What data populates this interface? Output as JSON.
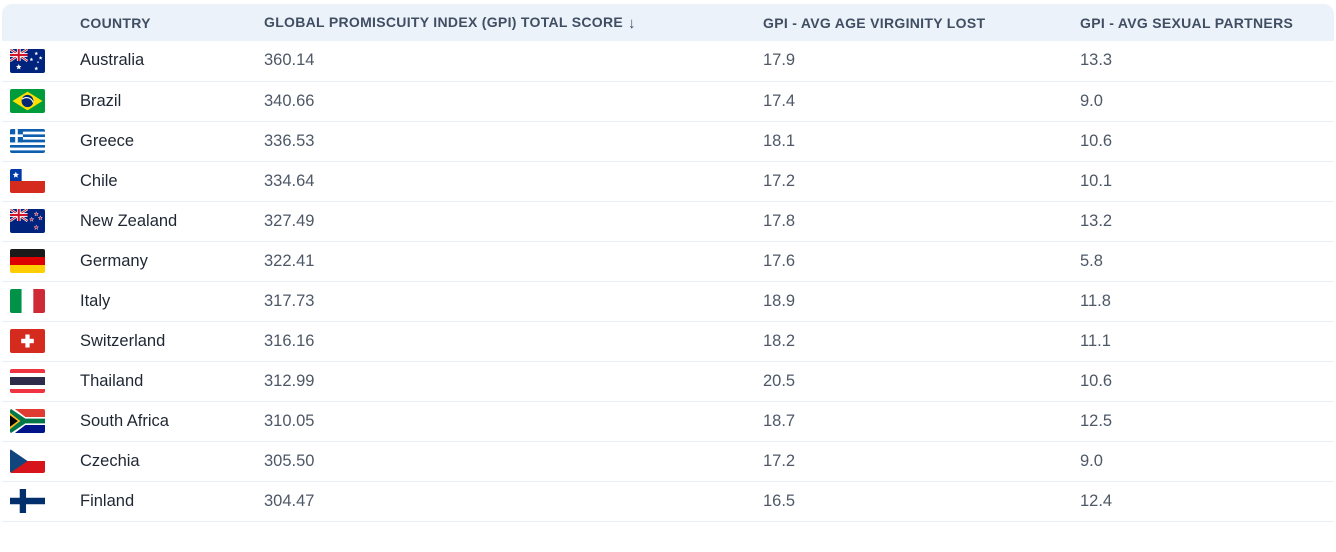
{
  "table": {
    "columns": [
      {
        "key": "country",
        "label": "COUNTRY"
      },
      {
        "key": "gpi_total_score",
        "label": "GLOBAL PROMISCUITY INDEX (GPI) TOTAL SCORE",
        "sort_indicator": "↓",
        "sort": "descending"
      },
      {
        "key": "avg_age_virginity_lost",
        "label": "GPI - AVG AGE VIRGINITY LOST"
      },
      {
        "key": "avg_sexual_partners",
        "label": "GPI - AVG SEXUAL PARTNERS"
      }
    ],
    "rows": [
      {
        "flag": "au",
        "country": "Australia",
        "score": "360.14",
        "avg_age_virginity_lost": "17.9",
        "avg_sexual_partners": "13.3"
      },
      {
        "flag": "br",
        "country": "Brazil",
        "score": "340.66",
        "avg_age_virginity_lost": "17.4",
        "avg_sexual_partners": "9.0"
      },
      {
        "flag": "gr",
        "country": "Greece",
        "score": "336.53",
        "avg_age_virginity_lost": "18.1",
        "avg_sexual_partners": "10.6"
      },
      {
        "flag": "cl",
        "country": "Chile",
        "score": "334.64",
        "avg_age_virginity_lost": "17.2",
        "avg_sexual_partners": "10.1"
      },
      {
        "flag": "nz",
        "country": "New Zealand",
        "score": "327.49",
        "avg_age_virginity_lost": "17.8",
        "avg_sexual_partners": "13.2"
      },
      {
        "flag": "de",
        "country": "Germany",
        "score": "322.41",
        "avg_age_virginity_lost": "17.6",
        "avg_sexual_partners": "5.8"
      },
      {
        "flag": "it",
        "country": "Italy",
        "score": "317.73",
        "avg_age_virginity_lost": "18.9",
        "avg_sexual_partners": "11.8"
      },
      {
        "flag": "ch",
        "country": "Switzerland",
        "score": "316.16",
        "avg_age_virginity_lost": "18.2",
        "avg_sexual_partners": "11.1"
      },
      {
        "flag": "th",
        "country": "Thailand",
        "score": "312.99",
        "avg_age_virginity_lost": "20.5",
        "avg_sexual_partners": "10.6"
      },
      {
        "flag": "za",
        "country": "South Africa",
        "score": "310.05",
        "avg_age_virginity_lost": "18.7",
        "avg_sexual_partners": "12.5"
      },
      {
        "flag": "cz",
        "country": "Czechia",
        "score": "305.50",
        "avg_age_virginity_lost": "17.2",
        "avg_sexual_partners": "9.0"
      },
      {
        "flag": "fi",
        "country": "Finland",
        "score": "304.47",
        "avg_age_virginity_lost": "16.5",
        "avg_sexual_partners": "12.4"
      }
    ]
  },
  "colors": {
    "header_bg": "#ecf2f9",
    "header_text": "#3f4e63",
    "row_border": "#e9eef3",
    "country_text": "#1f2733",
    "value_text": "#4e5866",
    "page_bg": "#ffffff"
  }
}
